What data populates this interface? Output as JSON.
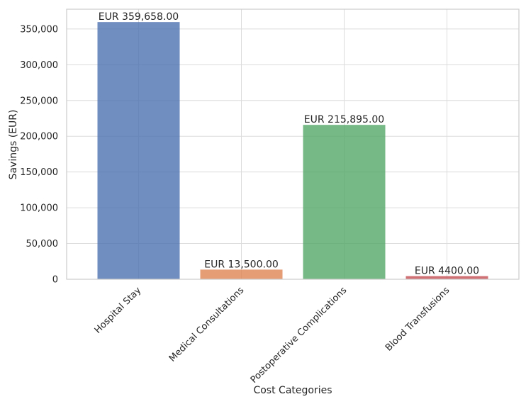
{
  "chart_data": {
    "type": "bar",
    "title": "",
    "xlabel": "Cost Categories",
    "ylabel": "Savings (EUR)",
    "categories": [
      "Hospital Stay",
      "Medical Consultations",
      "Postoperative Complications",
      "Blood Transfusions"
    ],
    "values": [
      359658,
      13500,
      215895,
      4400
    ],
    "data_labels": [
      "EUR 359,658.00",
      "EUR 13,500.00",
      "EUR 215,895.00",
      "EUR 4400.00"
    ],
    "colors": [
      "#4c72b0",
      "#dd8452",
      "#55a868",
      "#c44e52"
    ],
    "ylim": [
      0,
      377640
    ],
    "yticks": [
      0,
      50000,
      100000,
      150000,
      200000,
      250000,
      300000,
      350000
    ],
    "ytick_labels": [
      "0",
      "50,000",
      "100,000",
      "150,000",
      "200,000",
      "250,000",
      "300,000",
      "350,000"
    ],
    "grid": true,
    "legend": "none"
  }
}
